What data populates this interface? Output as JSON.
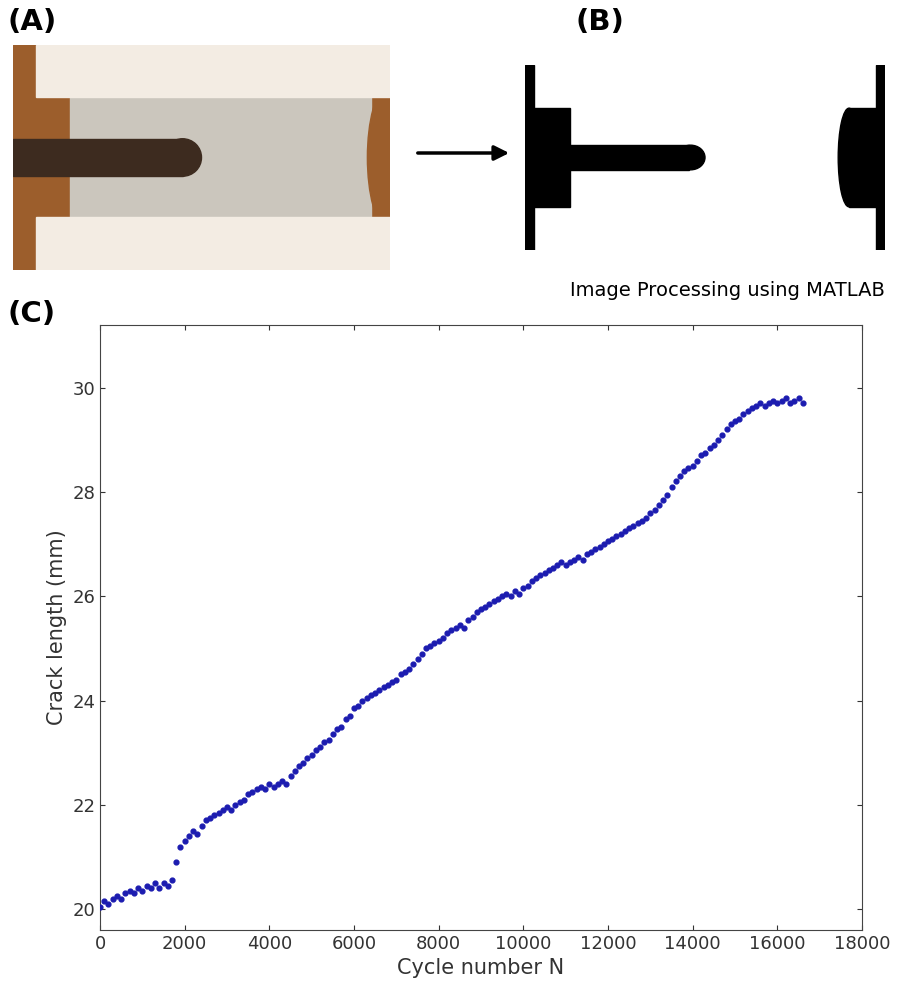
{
  "panel_labels": [
    "(A)",
    "(B)",
    "(C)"
  ],
  "caption": "Image Processing using MATLAB",
  "chart_data": {
    "type": "scatter",
    "x_label": "Cycle number N",
    "y_label": "Crack length (mm)",
    "color": "#1c1cb0",
    "marker": "o",
    "grid": false,
    "xlim": [
      0,
      18000
    ],
    "xticks": [
      0,
      2000,
      4000,
      6000,
      8000,
      10000,
      12000,
      14000,
      16000,
      18000
    ],
    "ylim": [
      19.6,
      31.2
    ],
    "yticks": [
      20,
      22,
      24,
      26,
      28,
      30
    ],
    "x": [
      0,
      100,
      200,
      300,
      400,
      500,
      600,
      700,
      800,
      900,
      1000,
      1100,
      1200,
      1300,
      1400,
      1500,
      1600,
      1700,
      1800,
      1900,
      2000,
      2100,
      2200,
      2300,
      2400,
      2500,
      2600,
      2700,
      2800,
      2900,
      3000,
      3100,
      3200,
      3300,
      3400,
      3500,
      3600,
      3700,
      3800,
      3900,
      4000,
      4100,
      4200,
      4300,
      4400,
      4500,
      4600,
      4700,
      4800,
      4900,
      5000,
      5100,
      5200,
      5300,
      5400,
      5500,
      5600,
      5700,
      5800,
      5900,
      6000,
      6100,
      6200,
      6300,
      6400,
      6500,
      6600,
      6700,
      6800,
      6900,
      7000,
      7100,
      7200,
      7300,
      7400,
      7500,
      7600,
      7700,
      7800,
      7900,
      8000,
      8100,
      8200,
      8300,
      8400,
      8500,
      8600,
      8700,
      8800,
      8900,
      9000,
      9100,
      9200,
      9300,
      9400,
      9500,
      9600,
      9700,
      9800,
      9900,
      10000,
      10100,
      10200,
      10300,
      10400,
      10500,
      10600,
      10700,
      10800,
      10900,
      11000,
      11100,
      11200,
      11300,
      11400,
      11500,
      11600,
      11700,
      11800,
      11900,
      12000,
      12100,
      12200,
      12300,
      12400,
      12500,
      12600,
      12700,
      12800,
      12900,
      13000,
      13100,
      13200,
      13300,
      13400,
      13500,
      13600,
      13700,
      13800,
      13900,
      14000,
      14100,
      14200,
      14300,
      14400,
      14500,
      14600,
      14700,
      14800,
      14900,
      15000,
      15100,
      15200,
      15300,
      15400,
      15500,
      15600,
      15700,
      15800,
      15900,
      16000,
      16100,
      16200,
      16300,
      16400,
      16500,
      16600
    ],
    "values": [
      20.05,
      20.15,
      20.1,
      20.2,
      20.25,
      20.2,
      20.3,
      20.35,
      20.3,
      20.4,
      20.35,
      20.45,
      20.4,
      20.5,
      20.4,
      20.5,
      20.45,
      20.55,
      20.9,
      21.2,
      21.3,
      21.4,
      21.5,
      21.45,
      21.6,
      21.7,
      21.75,
      21.8,
      21.85,
      21.9,
      21.95,
      21.9,
      22.0,
      22.05,
      22.1,
      22.2,
      22.25,
      22.3,
      22.35,
      22.3,
      22.4,
      22.35,
      22.4,
      22.45,
      22.4,
      22.55,
      22.65,
      22.75,
      22.8,
      22.9,
      22.95,
      23.05,
      23.1,
      23.2,
      23.25,
      23.35,
      23.45,
      23.5,
      23.65,
      23.7,
      23.85,
      23.9,
      24.0,
      24.05,
      24.1,
      24.15,
      24.2,
      24.25,
      24.3,
      24.35,
      24.4,
      24.5,
      24.55,
      24.6,
      24.7,
      24.8,
      24.9,
      25.0,
      25.05,
      25.1,
      25.15,
      25.2,
      25.3,
      25.35,
      25.4,
      25.45,
      25.4,
      25.55,
      25.6,
      25.7,
      25.75,
      25.8,
      25.85,
      25.9,
      25.95,
      26.0,
      26.05,
      26.0,
      26.1,
      26.05,
      26.15,
      26.2,
      26.3,
      26.35,
      26.4,
      26.45,
      26.5,
      26.55,
      26.6,
      26.65,
      26.6,
      26.65,
      26.7,
      26.75,
      26.7,
      26.8,
      26.85,
      26.9,
      26.95,
      27.0,
      27.05,
      27.1,
      27.15,
      27.2,
      27.25,
      27.3,
      27.35,
      27.4,
      27.45,
      27.5,
      27.6,
      27.65,
      27.75,
      27.85,
      27.95,
      28.1,
      28.2,
      28.3,
      28.4,
      28.45,
      28.5,
      28.6,
      28.7,
      28.75,
      28.85,
      28.9,
      29.0,
      29.1,
      29.2,
      29.3,
      29.35,
      29.4,
      29.5,
      29.55,
      29.6,
      29.65,
      29.7,
      29.65,
      29.7,
      29.75,
      29.7,
      29.75,
      29.8,
      29.7,
      29.75,
      29.8,
      29.7
    ]
  }
}
